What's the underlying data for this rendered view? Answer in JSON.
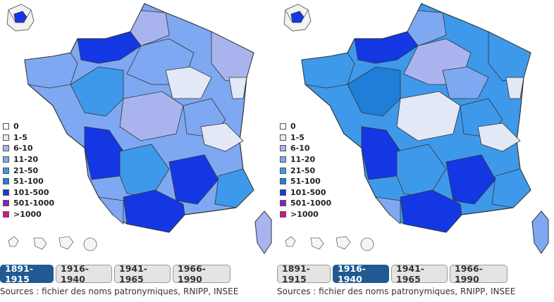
{
  "legend": [
    {
      "label": "0",
      "color": "#ffffff"
    },
    {
      "label": "1-5",
      "color": "#e3e8f7"
    },
    {
      "label": "6-10",
      "color": "#a9b4ef"
    },
    {
      "label": "11-20",
      "color": "#7ea8f1"
    },
    {
      "label": "21-50",
      "color": "#3f99ea"
    },
    {
      "label": "51-100",
      "color": "#1f7fd8"
    },
    {
      "label": "101-500",
      "color": "#1338e3"
    },
    {
      "label": "501-1000",
      "color": "#8b1fc2"
    },
    {
      "label": ">1000",
      "color": "#d8128a"
    }
  ],
  "periods": [
    {
      "label": "1891-1915"
    },
    {
      "label": "1916-1940"
    },
    {
      "label": "1941-1965"
    },
    {
      "label": "1966-1990"
    }
  ],
  "panels": [
    {
      "active_period": "1891-1915"
    },
    {
      "active_period": "1916-1940"
    }
  ],
  "source": "Sources : fichier des noms patronymiques, RNIPP, INSEE"
}
